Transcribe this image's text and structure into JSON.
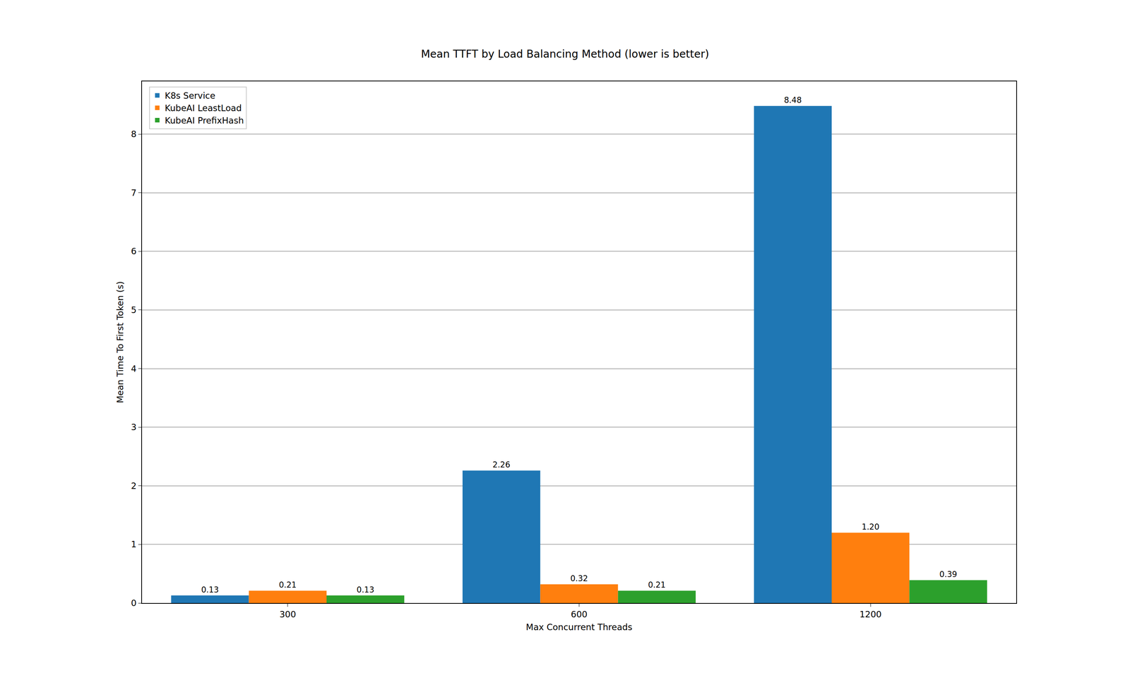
{
  "chart_data": {
    "type": "bar",
    "title": "Mean TTFT by Load Balancing Method (lower is better)",
    "x_label": "Max Concurrent Threads",
    "y_label": "Mean Time To First Token (s)",
    "categories": [
      "300",
      "600",
      "1200"
    ],
    "series": [
      {
        "name": "K8s Service",
        "color": "#1f77b4",
        "values": [
          0.13,
          2.26,
          8.48
        ],
        "value_labels": [
          "0.13",
          "2.26",
          "8.48"
        ]
      },
      {
        "name": "KubeAI LeastLoad",
        "color": "#ff7f0e",
        "values": [
          0.21,
          0.32,
          1.2
        ],
        "value_labels": [
          "0.21",
          "0.32",
          "1.20"
        ]
      },
      {
        "name": "KubeAI PrefixHash",
        "color": "#2ca02c",
        "values": [
          0.13,
          0.21,
          0.39
        ],
        "value_labels": [
          "0.13",
          "0.21",
          "0.39"
        ]
      }
    ],
    "ylim": [
      0,
      8.9
    ],
    "yticks": [
      0,
      1,
      2,
      3,
      4,
      5,
      6,
      7,
      8
    ],
    "grid": true,
    "legend": "upper left",
    "data_labels": true
  }
}
